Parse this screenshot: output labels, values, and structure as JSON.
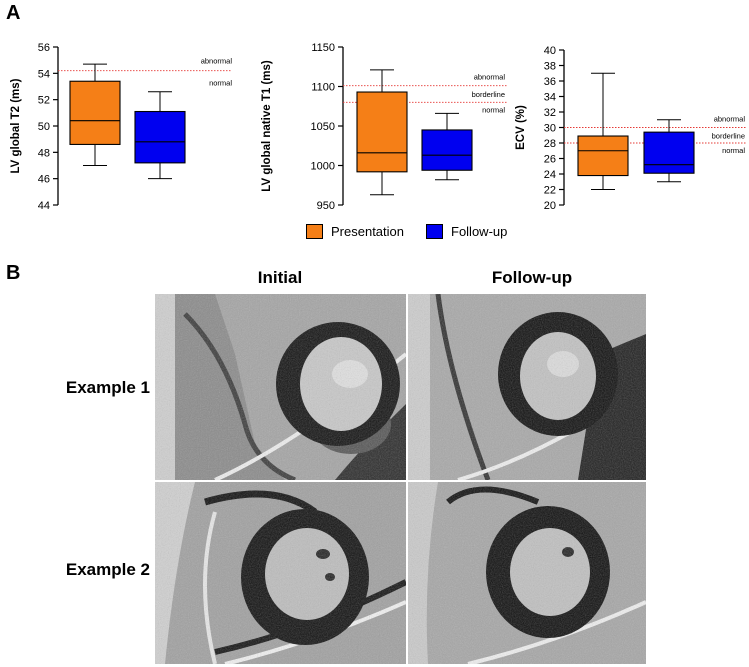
{
  "panel_a_label": "A",
  "panel_b_label": "B",
  "colors": {
    "presentation": "#F57F17",
    "follow_up": "#0000F0",
    "threshold": "#E53935"
  },
  "chart_data": [
    {
      "type": "box",
      "ylabel": "LV global T2 (ms)",
      "ylim": [
        44,
        56
      ],
      "yticks": [
        44,
        46,
        48,
        50,
        52,
        54,
        56
      ],
      "series": [
        {
          "name": "Presentation",
          "min": 47.0,
          "q1": 48.6,
          "median": 50.4,
          "q3": 53.4,
          "max": 54.7
        },
        {
          "name": "Follow-up",
          "min": 46.0,
          "q1": 47.2,
          "median": 48.8,
          "q3": 51.1,
          "max": 52.6
        }
      ],
      "thresholds": [
        {
          "value": 54.2
        }
      ],
      "annotations": [
        "abnormal",
        "normal"
      ]
    },
    {
      "type": "box",
      "ylabel": "LV global native T1 (ms)",
      "ylim": [
        950,
        1150
      ],
      "yticks": [
        950,
        1000,
        1050,
        1100,
        1150
      ],
      "series": [
        {
          "name": "Presentation",
          "min": 963,
          "q1": 992,
          "median": 1016,
          "q3": 1093,
          "max": 1121
        },
        {
          "name": "Follow-up",
          "min": 982,
          "q1": 994,
          "median": 1013,
          "q3": 1045,
          "max": 1066
        }
      ],
      "thresholds": [
        {
          "value": 1101
        },
        {
          "value": 1080
        }
      ],
      "annotations": [
        "abnormal",
        "borderline",
        "normal"
      ]
    },
    {
      "type": "box",
      "ylabel": "ECV (%)",
      "ylim": [
        20,
        40
      ],
      "yticks": [
        20,
        22,
        24,
        26,
        28,
        30,
        32,
        34,
        36,
        38,
        40
      ],
      "series": [
        {
          "name": "Presentation",
          "min": 22.0,
          "q1": 23.8,
          "median": 27.0,
          "q3": 28.9,
          "max": 37.0
        },
        {
          "name": "Follow-up",
          "min": 23.0,
          "q1": 24.1,
          "median": 25.2,
          "q3": 29.4,
          "max": 31.0
        }
      ],
      "thresholds": [
        {
          "value": 30.0
        },
        {
          "value": 28.0
        }
      ],
      "annotations": [
        "abnormal",
        "borderline",
        "normal"
      ]
    }
  ],
  "legend": [
    {
      "label": "Presentation",
      "color": "#F57F17"
    },
    {
      "label": "Follow-up",
      "color": "#0000F0"
    }
  ],
  "panel_b": {
    "columns": [
      "Initial",
      "Follow-up"
    ],
    "rows": [
      "Example 1",
      "Example 2"
    ]
  }
}
